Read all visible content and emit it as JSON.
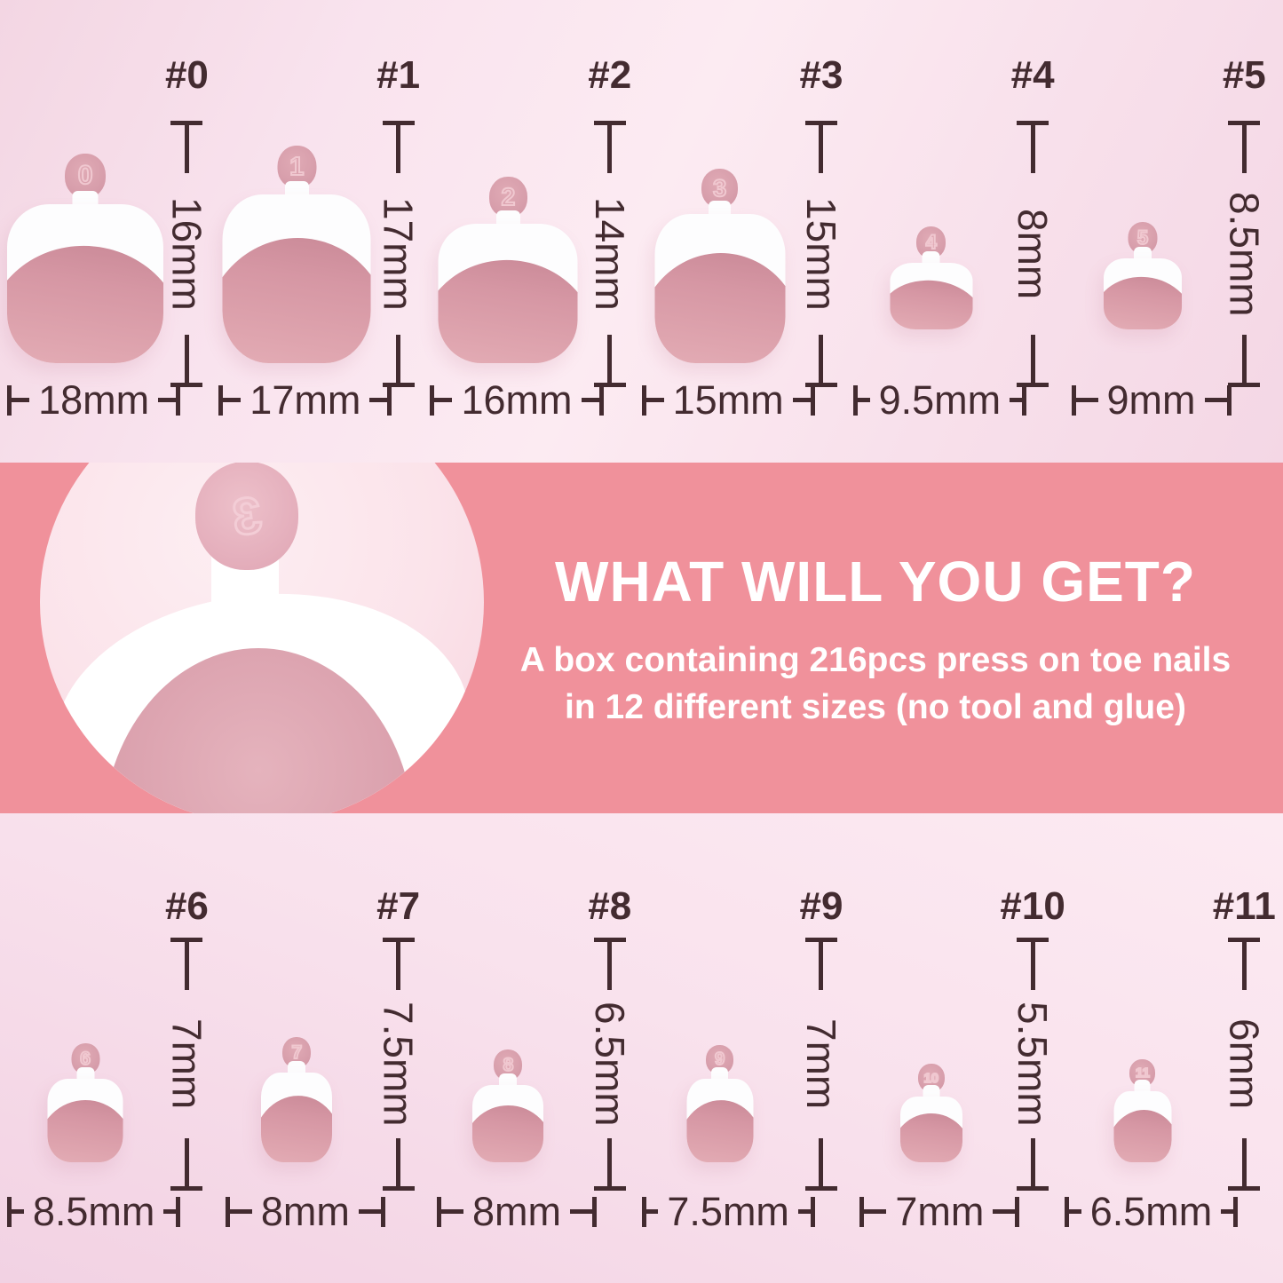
{
  "top_row": [
    {
      "label": "#0",
      "tab_number": "0",
      "height_label": "16mm",
      "width_label": "18mm",
      "height_mm": 16,
      "width_mm": 18
    },
    {
      "label": "#1",
      "tab_number": "1",
      "height_label": "17mm",
      "width_label": "17mm",
      "height_mm": 17,
      "width_mm": 17
    },
    {
      "label": "#2",
      "tab_number": "2",
      "height_label": "14mm",
      "width_label": "16mm",
      "height_mm": 14,
      "width_mm": 16
    },
    {
      "label": "#3",
      "tab_number": "3",
      "height_label": "15mm",
      "width_label": "15mm",
      "height_mm": 15,
      "width_mm": 15
    },
    {
      "label": "#4",
      "tab_number": "4",
      "height_label": "8mm",
      "width_label": "9.5mm",
      "height_mm": 8,
      "width_mm": 9.5
    },
    {
      "label": "#5",
      "tab_number": "5",
      "height_label": "8.5mm",
      "width_label": "9mm",
      "height_mm": 8.5,
      "width_mm": 9
    }
  ],
  "bottom_row": [
    {
      "label": "#6",
      "tab_number": "6",
      "height_label": "7mm",
      "width_label": "8.5mm",
      "height_mm": 7,
      "width_mm": 8.5
    },
    {
      "label": "#7",
      "tab_number": "7",
      "height_label": "7.5mm",
      "width_label": "8mm",
      "height_mm": 7.5,
      "width_mm": 8
    },
    {
      "label": "#8",
      "tab_number": "8",
      "height_label": "6.5mm",
      "width_label": "8mm",
      "height_mm": 6.5,
      "width_mm": 8
    },
    {
      "label": "#9",
      "tab_number": "9",
      "height_label": "7mm",
      "width_label": "7.5mm",
      "height_mm": 7,
      "width_mm": 7.5
    },
    {
      "label": "#10",
      "tab_number": "10",
      "height_label": "5.5mm",
      "width_label": "7mm",
      "height_mm": 5.5,
      "width_mm": 7
    },
    {
      "label": "#11",
      "tab_number": "11",
      "height_label": "6mm",
      "width_label": "6.5mm",
      "height_mm": 6,
      "width_mm": 6.5
    }
  ],
  "banner": {
    "heading": "WHAT WILL YOU GET?",
    "subtitle_line1": "A box containing 216pcs press on toe nails",
    "subtitle_line2": "in 12 different sizes (no tool and glue)",
    "magnified_tab_number": "3"
  },
  "colors": {
    "banner_bg": "#f0919b",
    "banner_text": "#ffffff",
    "measure_text": "#432b30",
    "nail_pink": "#dda2ac",
    "nail_white": "#fdfdfe",
    "tab_pink": "#d89fac",
    "background_pink": "#f8e0eb"
  }
}
